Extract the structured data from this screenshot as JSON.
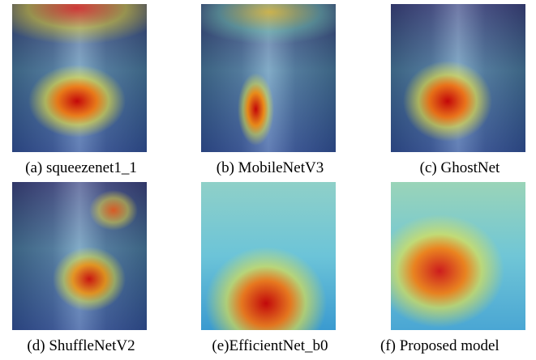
{
  "panels": [
    {
      "caption": "(a) squeezenet1_1"
    },
    {
      "caption": "(b) MobileNetV3"
    },
    {
      "caption": "(c) GhostNet"
    },
    {
      "caption": "(d) ShuffleNetV2"
    },
    {
      "caption": "(e)EfficientNet_b0"
    },
    {
      "caption": "(f) Proposed model"
    }
  ]
}
